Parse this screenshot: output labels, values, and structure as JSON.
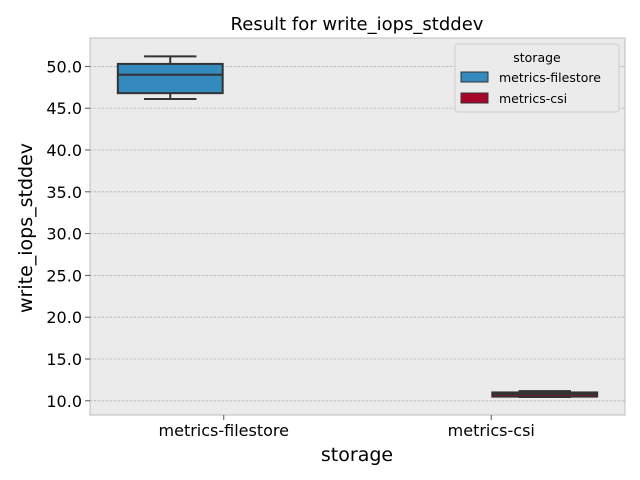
{
  "chart_data": {
    "type": "box",
    "title": "Result for write_iops_stddev",
    "xlabel": "storage",
    "ylabel": "write_iops_stddev",
    "categories": [
      "metrics-filestore",
      "metrics-csi"
    ],
    "ylim": [
      8.3,
      53.4
    ],
    "yticks": [
      "10.0",
      "15.0",
      "20.0",
      "25.0",
      "30.0",
      "35.0",
      "40.0",
      "45.0",
      "50.0"
    ],
    "grid": true,
    "legend": {
      "title": "storage",
      "position": "top-right",
      "entries": [
        "metrics-filestore",
        "metrics-csi"
      ]
    },
    "series": [
      {
        "name": "metrics-filestore",
        "category": "metrics-filestore",
        "color": "#348ABD",
        "stats": {
          "whisker_low": 46.1,
          "q1": 46.8,
          "median": 49.0,
          "q3": 50.3,
          "whisker_high": 51.2
        }
      },
      {
        "name": "metrics-csi",
        "category": "metrics-csi",
        "color": "#A60628",
        "stats": {
          "whisker_low": 10.45,
          "q1": 10.5,
          "median": 10.8,
          "q3": 11.0,
          "whisker_high": 11.15
        }
      }
    ],
    "colors": {
      "background": "#EBEBEB",
      "grid": "#B2B2B2",
      "box_edge": "#333333"
    }
  }
}
